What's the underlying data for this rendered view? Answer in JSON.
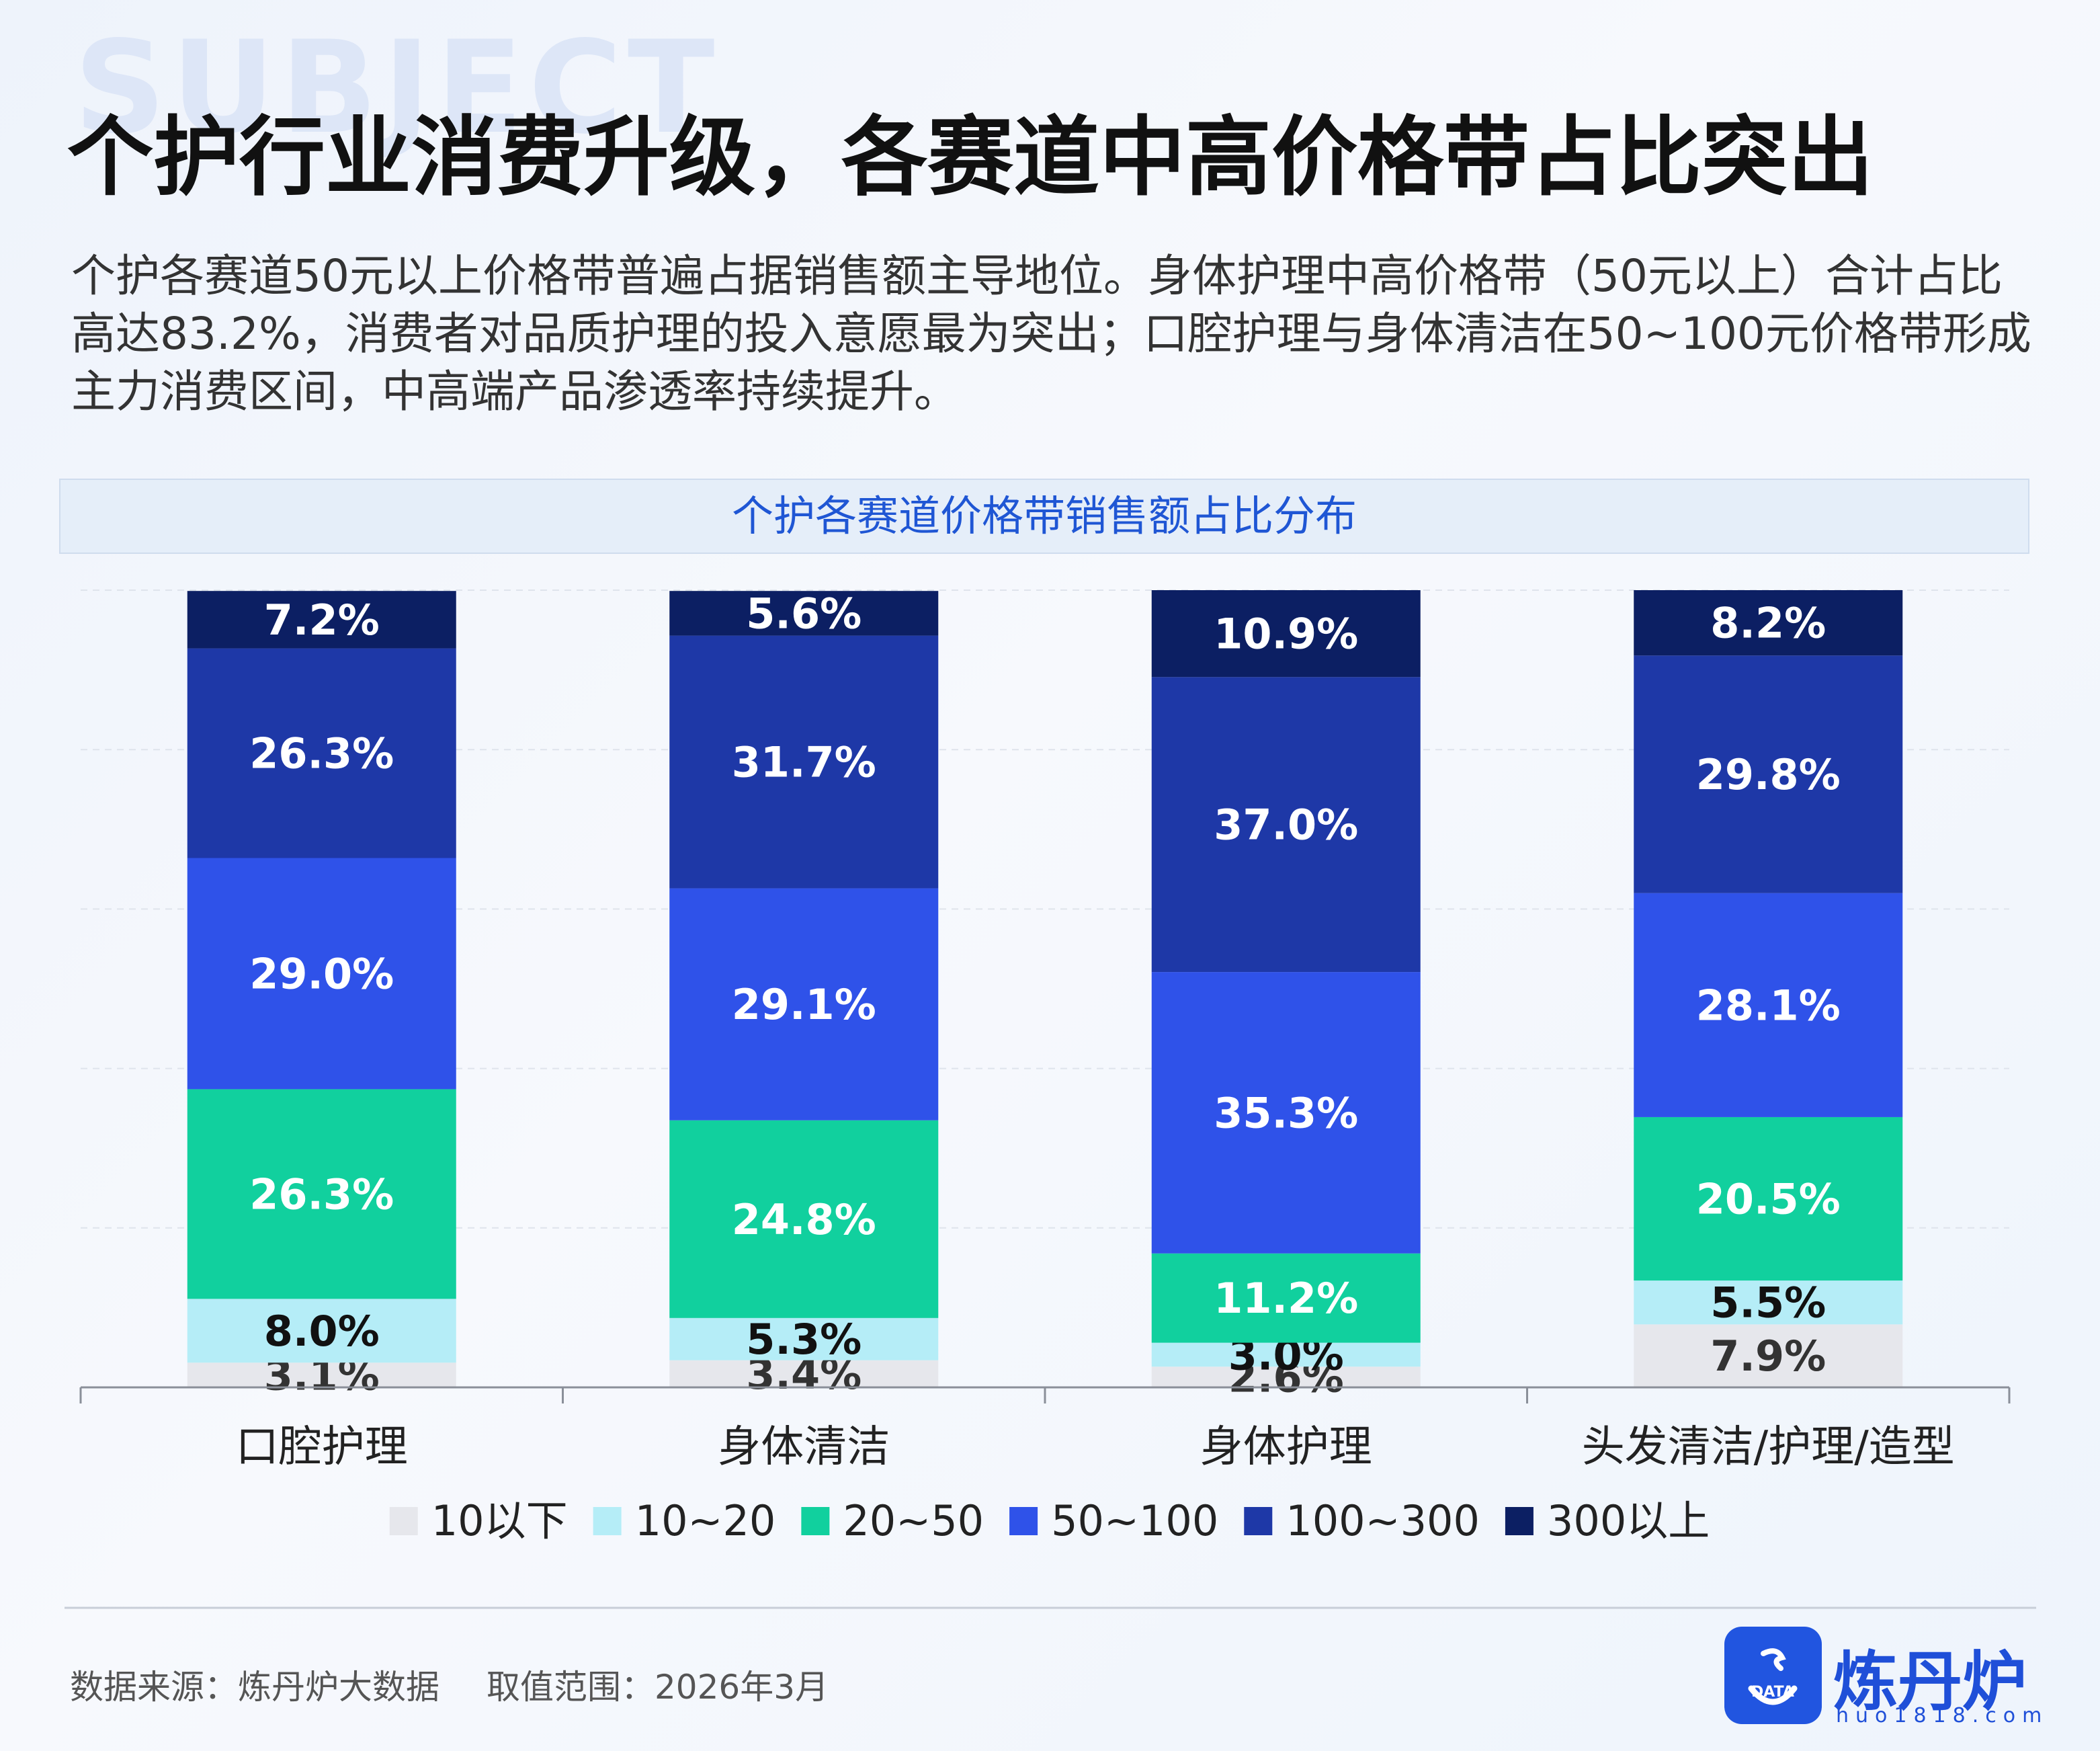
{
  "bg_word": "SUBJECT",
  "title": "个护行业消费升级，各赛道中高价格带占比突出",
  "description": "个护各赛道50元以上价格带普遍占据销售额主导地位。身体护理中高价格带（50元以上）合计占比高达83.2%，消费者对品质护理的投入意愿最为突出；口腔护理与身体清洁在50~100元价格带形成主力消费区间，中高端产品渗透率持续提升。",
  "source": "数据来源：炼丹炉大数据",
  "range": "取值范围：2026年3月",
  "logo": {
    "name": "炼丹炉",
    "url": "huo1818.com",
    "badge": "DATA"
  },
  "colors": {
    "10以下": "#e6e7ec",
    "10~20": "#b5edf7",
    "20~50": "#11d09e",
    "50~100": "#2f52e9",
    "100~300": "#1e38a7",
    "300以上": "#0c1f63"
  },
  "chart_data": {
    "type": "bar",
    "stacked": true,
    "title": "个护各赛道价格带销售额占比分布",
    "categories": [
      "口腔护理",
      "身体清洁",
      "身体护理",
      "头发清洁/护理/造型"
    ],
    "series": [
      {
        "name": "10以下",
        "values": [
          3.1,
          3.4,
          2.6,
          7.9
        ]
      },
      {
        "name": "10~20",
        "values": [
          8.0,
          5.3,
          3.0,
          5.5
        ]
      },
      {
        "name": "20~50",
        "values": [
          26.3,
          24.8,
          11.2,
          20.5
        ]
      },
      {
        "name": "50~100",
        "values": [
          29.0,
          29.1,
          35.3,
          28.1
        ]
      },
      {
        "name": "100~300",
        "values": [
          26.3,
          31.7,
          37.0,
          29.8
        ]
      },
      {
        "name": "300以上",
        "values": [
          7.2,
          5.6,
          10.9,
          8.2
        ]
      }
    ],
    "value_suffix": "%",
    "ylim": [
      0,
      100
    ],
    "grid": true,
    "legend_position": "bottom"
  }
}
